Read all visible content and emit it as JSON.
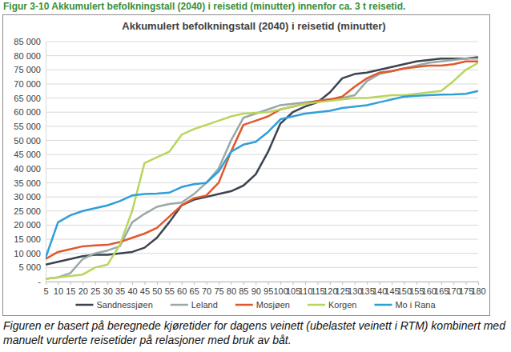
{
  "chart_data": {
    "type": "line",
    "title": "Akkumulert befolkningstall (2040) i reisetid (minutter)",
    "subtitle": "Figur 3-10 Akkumulert befolkningstall (2040) i reisetid (minutter) innenfor ca. 3 t reisetid.",
    "annotations": [
      "Figuren er basert på beregnede kjøretider for dagens veinett (ubelastet veinett i RTM) kombinert med manuelt vurderte reisetider på relasjoner med bruk av båt."
    ],
    "x": [
      5,
      10,
      15,
      20,
      25,
      30,
      35,
      40,
      45,
      50,
      55,
      60,
      65,
      70,
      75,
      80,
      85,
      90,
      95,
      100,
      105,
      110,
      115,
      120,
      125,
      130,
      135,
      140,
      145,
      150,
      155,
      160,
      165,
      170,
      175,
      180
    ],
    "series": [
      {
        "name": "Sandnessjøen",
        "color": "#3b4350",
        "values": [
          6000,
          7000,
          8000,
          9000,
          9500,
          9500,
          10000,
          10500,
          12000,
          15500,
          21000,
          27000,
          29000,
          30000,
          31000,
          32000,
          34000,
          38000,
          46000,
          56000,
          60000,
          62000,
          63500,
          67000,
          72000,
          73500,
          74000,
          75000,
          76000,
          77000,
          78000,
          78500,
          79000,
          79000,
          79000,
          79500
        ]
      },
      {
        "name": "Leland",
        "color": "#9aa8a8",
        "values": [
          1000,
          1500,
          3000,
          8000,
          10000,
          11000,
          12500,
          21000,
          24000,
          26500,
          27500,
          28000,
          31000,
          35000,
          40000,
          50000,
          58000,
          59500,
          61000,
          62500,
          63000,
          63500,
          64000,
          64500,
          65000,
          66000,
          71000,
          73500,
          74500,
          75500,
          76500,
          77500,
          78000,
          78500,
          79000,
          79000
        ]
      },
      {
        "name": "Mosjøen",
        "color": "#e0582b",
        "values": [
          8000,
          10500,
          11500,
          12500,
          12800,
          13000,
          14000,
          15500,
          17000,
          19000,
          23000,
          27000,
          29500,
          30500,
          35000,
          46000,
          55500,
          57000,
          58500,
          61000,
          62000,
          63000,
          64000,
          64500,
          65500,
          69000,
          72000,
          74000,
          74500,
          75500,
          76000,
          76500,
          76500,
          77000,
          78000,
          78000
        ]
      },
      {
        "name": "Korgen",
        "color": "#b8d65c",
        "values": [
          1000,
          1500,
          2000,
          2500,
          5000,
          6000,
          13000,
          25000,
          42000,
          44000,
          46000,
          52000,
          54000,
          55500,
          57000,
          58500,
          59500,
          59800,
          60000,
          61000,
          62000,
          63000,
          63500,
          64000,
          64500,
          65000,
          65000,
          65500,
          66000,
          66000,
          66500,
          67000,
          67500,
          71000,
          75000,
          77500
        ]
      },
      {
        "name": "Mo i Rana",
        "color": "#2e9fd8",
        "values": [
          8500,
          21000,
          23500,
          25000,
          26000,
          27000,
          28500,
          30500,
          31000,
          31200,
          31500,
          33500,
          34500,
          35000,
          39000,
          46000,
          48500,
          49500,
          53000,
          57500,
          58500,
          59500,
          60000,
          60500,
          61500,
          62000,
          62500,
          63500,
          64500,
          65500,
          65800,
          66000,
          66200,
          66300,
          66500,
          67500
        ]
      }
    ],
    "xlim": [
      5,
      180
    ],
    "xticks": [
      5,
      10,
      15,
      20,
      25,
      30,
      35,
      40,
      45,
      50,
      55,
      60,
      65,
      70,
      75,
      80,
      85,
      90,
      95,
      100,
      105,
      110,
      115,
      120,
      125,
      130,
      135,
      140,
      145,
      150,
      155,
      160,
      165,
      170,
      175,
      180
    ],
    "ylim": [
      0,
      85000
    ],
    "yticks": [
      {
        "value": 0,
        "label": "-"
      },
      {
        "value": 5000,
        "label": "5 000"
      },
      {
        "value": 10000,
        "label": "10 000"
      },
      {
        "value": 15000,
        "label": "15 000"
      },
      {
        "value": 20000,
        "label": "20 000"
      },
      {
        "value": 25000,
        "label": "25 000"
      },
      {
        "value": 30000,
        "label": "30 000"
      },
      {
        "value": 35000,
        "label": "35 000"
      },
      {
        "value": 40000,
        "label": "40 000"
      },
      {
        "value": 45000,
        "label": "45 000"
      },
      {
        "value": 50000,
        "label": "50 000"
      },
      {
        "value": 55000,
        "label": "55 000"
      },
      {
        "value": 60000,
        "label": "60 000"
      },
      {
        "value": 65000,
        "label": "65 000"
      },
      {
        "value": 70000,
        "label": "70 000"
      },
      {
        "value": 75000,
        "label": "75 000"
      },
      {
        "value": 80000,
        "label": "80 000"
      },
      {
        "value": 85000,
        "label": "85 000"
      }
    ],
    "grid": true,
    "legend": "bottom"
  }
}
